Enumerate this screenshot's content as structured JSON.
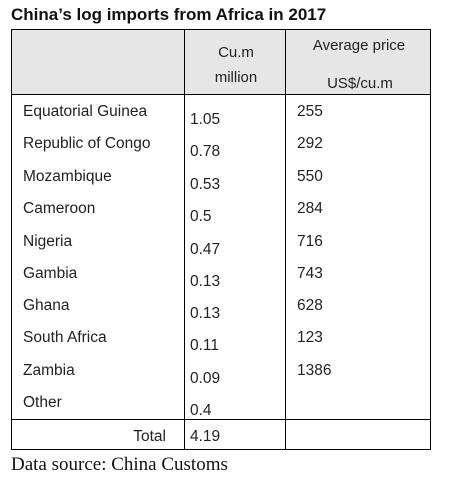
{
  "title": "China’s log imports from Africa in 2017",
  "header": {
    "volume_line1": "Cu.m",
    "volume_line2": "million",
    "price_line1": "Average price",
    "price_line2": "US$/cu.m"
  },
  "rows": [
    {
      "country": "Equatorial Guinea",
      "volume": "1.05",
      "price": "255"
    },
    {
      "country": "Republic of Congo",
      "volume": "0.78",
      "price": "292"
    },
    {
      "country": "Mozambique",
      "volume": "0.53",
      "price": "550"
    },
    {
      "country": "Cameroon",
      "volume": "0.5",
      "price": "284"
    },
    {
      "country": "Nigeria",
      "volume": "0.47",
      "price": "716"
    },
    {
      "country": "Gambia",
      "volume": "0.13",
      "price": "743"
    },
    {
      "country": "Ghana",
      "volume": "0.13",
      "price": "628"
    },
    {
      "country": "South Africa",
      "volume": "0.11",
      "price": "123"
    },
    {
      "country": "Zambia",
      "volume": "0.09",
      "price": "1386"
    },
    {
      "country": "Other",
      "volume": "0.4",
      "price": ""
    }
  ],
  "total": {
    "label": "Total",
    "volume": "4.19"
  },
  "source": "Data source: China Customs"
}
